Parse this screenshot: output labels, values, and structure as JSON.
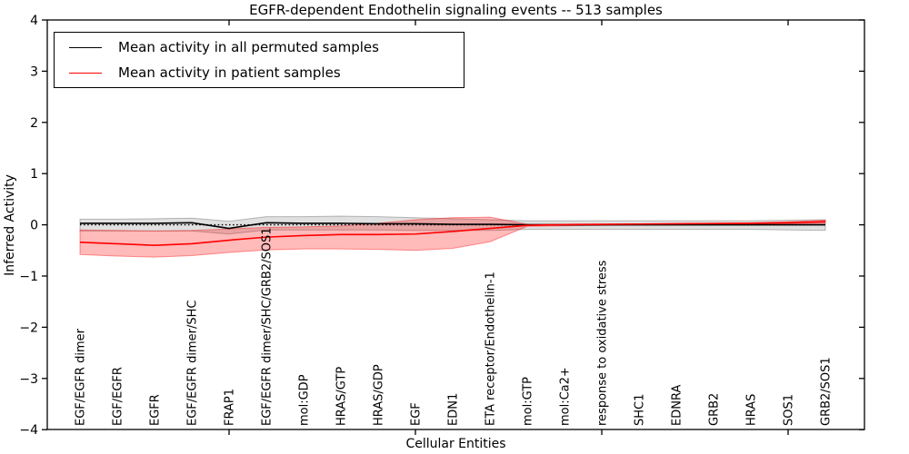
{
  "title": "EGFR-dependent Endothelin signaling events -- 513 samples",
  "legend": {
    "items": [
      {
        "label": "Mean activity in all permuted samples",
        "color": "#000000"
      },
      {
        "label": "Mean activity in patient samples",
        "color": "#ff0000"
      }
    ]
  },
  "chart_data": {
    "type": "line",
    "title": "EGFR-dependent Endothelin signaling events -- 513 samples",
    "xlabel": "Cellular Entities",
    "ylabel": "Inferred Activity",
    "ylim": [
      -4,
      4
    ],
    "yticks": [
      4,
      3,
      2,
      1,
      0,
      -1,
      -2,
      -3,
      -4
    ],
    "x_major_tick_indices": [
      4,
      9,
      14,
      19
    ],
    "grid": false,
    "zero_line_style": "dotted",
    "legend_position": "upper left",
    "categories": [
      "EGF/EGFR dimer",
      "EGF/EGFR",
      "EGFR",
      "EGF/EGFR dimer/SHC",
      "FRAP1",
      "EGF/EGFR dimer/SHC/GRB2/SOS1",
      "mol:GDP",
      "HRAS/GTP",
      "HRAS/GDP",
      "EGF",
      "EDN1",
      "ETA receptor/Endothelin-1",
      "mol:GTP",
      "mol:Ca2+",
      "response to oxidative stress",
      "SHC1",
      "EDNRA",
      "GRB2",
      "HRAS",
      "SOS1",
      "GRB2/SOS1"
    ],
    "series": [
      {
        "name": "Mean activity in all permuted samples",
        "color": "#000000",
        "values": [
          0.03,
          0.03,
          0.03,
          0.04,
          -0.07,
          0.04,
          0.03,
          0.03,
          0.02,
          0.02,
          0.01,
          0.01,
          0.0,
          0.0,
          0.0,
          0.0,
          0.0,
          0.0,
          0.0,
          0.0,
          0.0
        ]
      },
      {
        "name": "Mean activity in patient samples",
        "color": "#ff0000",
        "values": [
          -0.34,
          -0.37,
          -0.4,
          -0.37,
          -0.3,
          -0.24,
          -0.21,
          -0.19,
          -0.19,
          -0.18,
          -0.13,
          -0.07,
          -0.01,
          0.005,
          0.01,
          0.015,
          0.02,
          0.025,
          0.03,
          0.04,
          0.06
        ]
      }
    ],
    "bands": [
      {
        "name": "permuted-samples-range",
        "fill": "rgba(0,0,0,0.12)",
        "stroke": "rgba(0,0,0,0.25)",
        "upper": [
          0.11,
          0.11,
          0.12,
          0.13,
          0.07,
          0.16,
          0.16,
          0.17,
          0.16,
          0.14,
          0.12,
          0.1,
          0.08,
          0.08,
          0.08,
          0.08,
          0.08,
          0.08,
          0.08,
          0.09,
          0.1
        ],
        "lower": [
          -0.12,
          -0.12,
          -0.12,
          -0.12,
          -0.18,
          -0.1,
          -0.1,
          -0.1,
          -0.1,
          -0.11,
          -0.11,
          -0.11,
          -0.09,
          -0.09,
          -0.09,
          -0.09,
          -0.09,
          -0.09,
          -0.09,
          -0.1,
          -0.11
        ]
      },
      {
        "name": "patient-samples-range",
        "fill": "rgba(255,0,0,0.27)",
        "stroke": "rgba(255,0,0,0.40)",
        "upper": [
          -0.1,
          -0.11,
          -0.12,
          -0.11,
          -0.08,
          -0.05,
          -0.04,
          -0.02,
          0.03,
          0.1,
          0.14,
          0.15,
          0.01,
          0.01,
          0.01,
          0.02,
          0.02,
          0.03,
          0.04,
          0.06,
          0.09
        ],
        "lower": [
          -0.58,
          -0.61,
          -0.63,
          -0.6,
          -0.54,
          -0.49,
          -0.47,
          -0.47,
          -0.48,
          -0.5,
          -0.46,
          -0.33,
          -0.03,
          -0.02,
          -0.01,
          0.0,
          0.0,
          0.01,
          0.02,
          0.02,
          0.03
        ]
      }
    ]
  }
}
